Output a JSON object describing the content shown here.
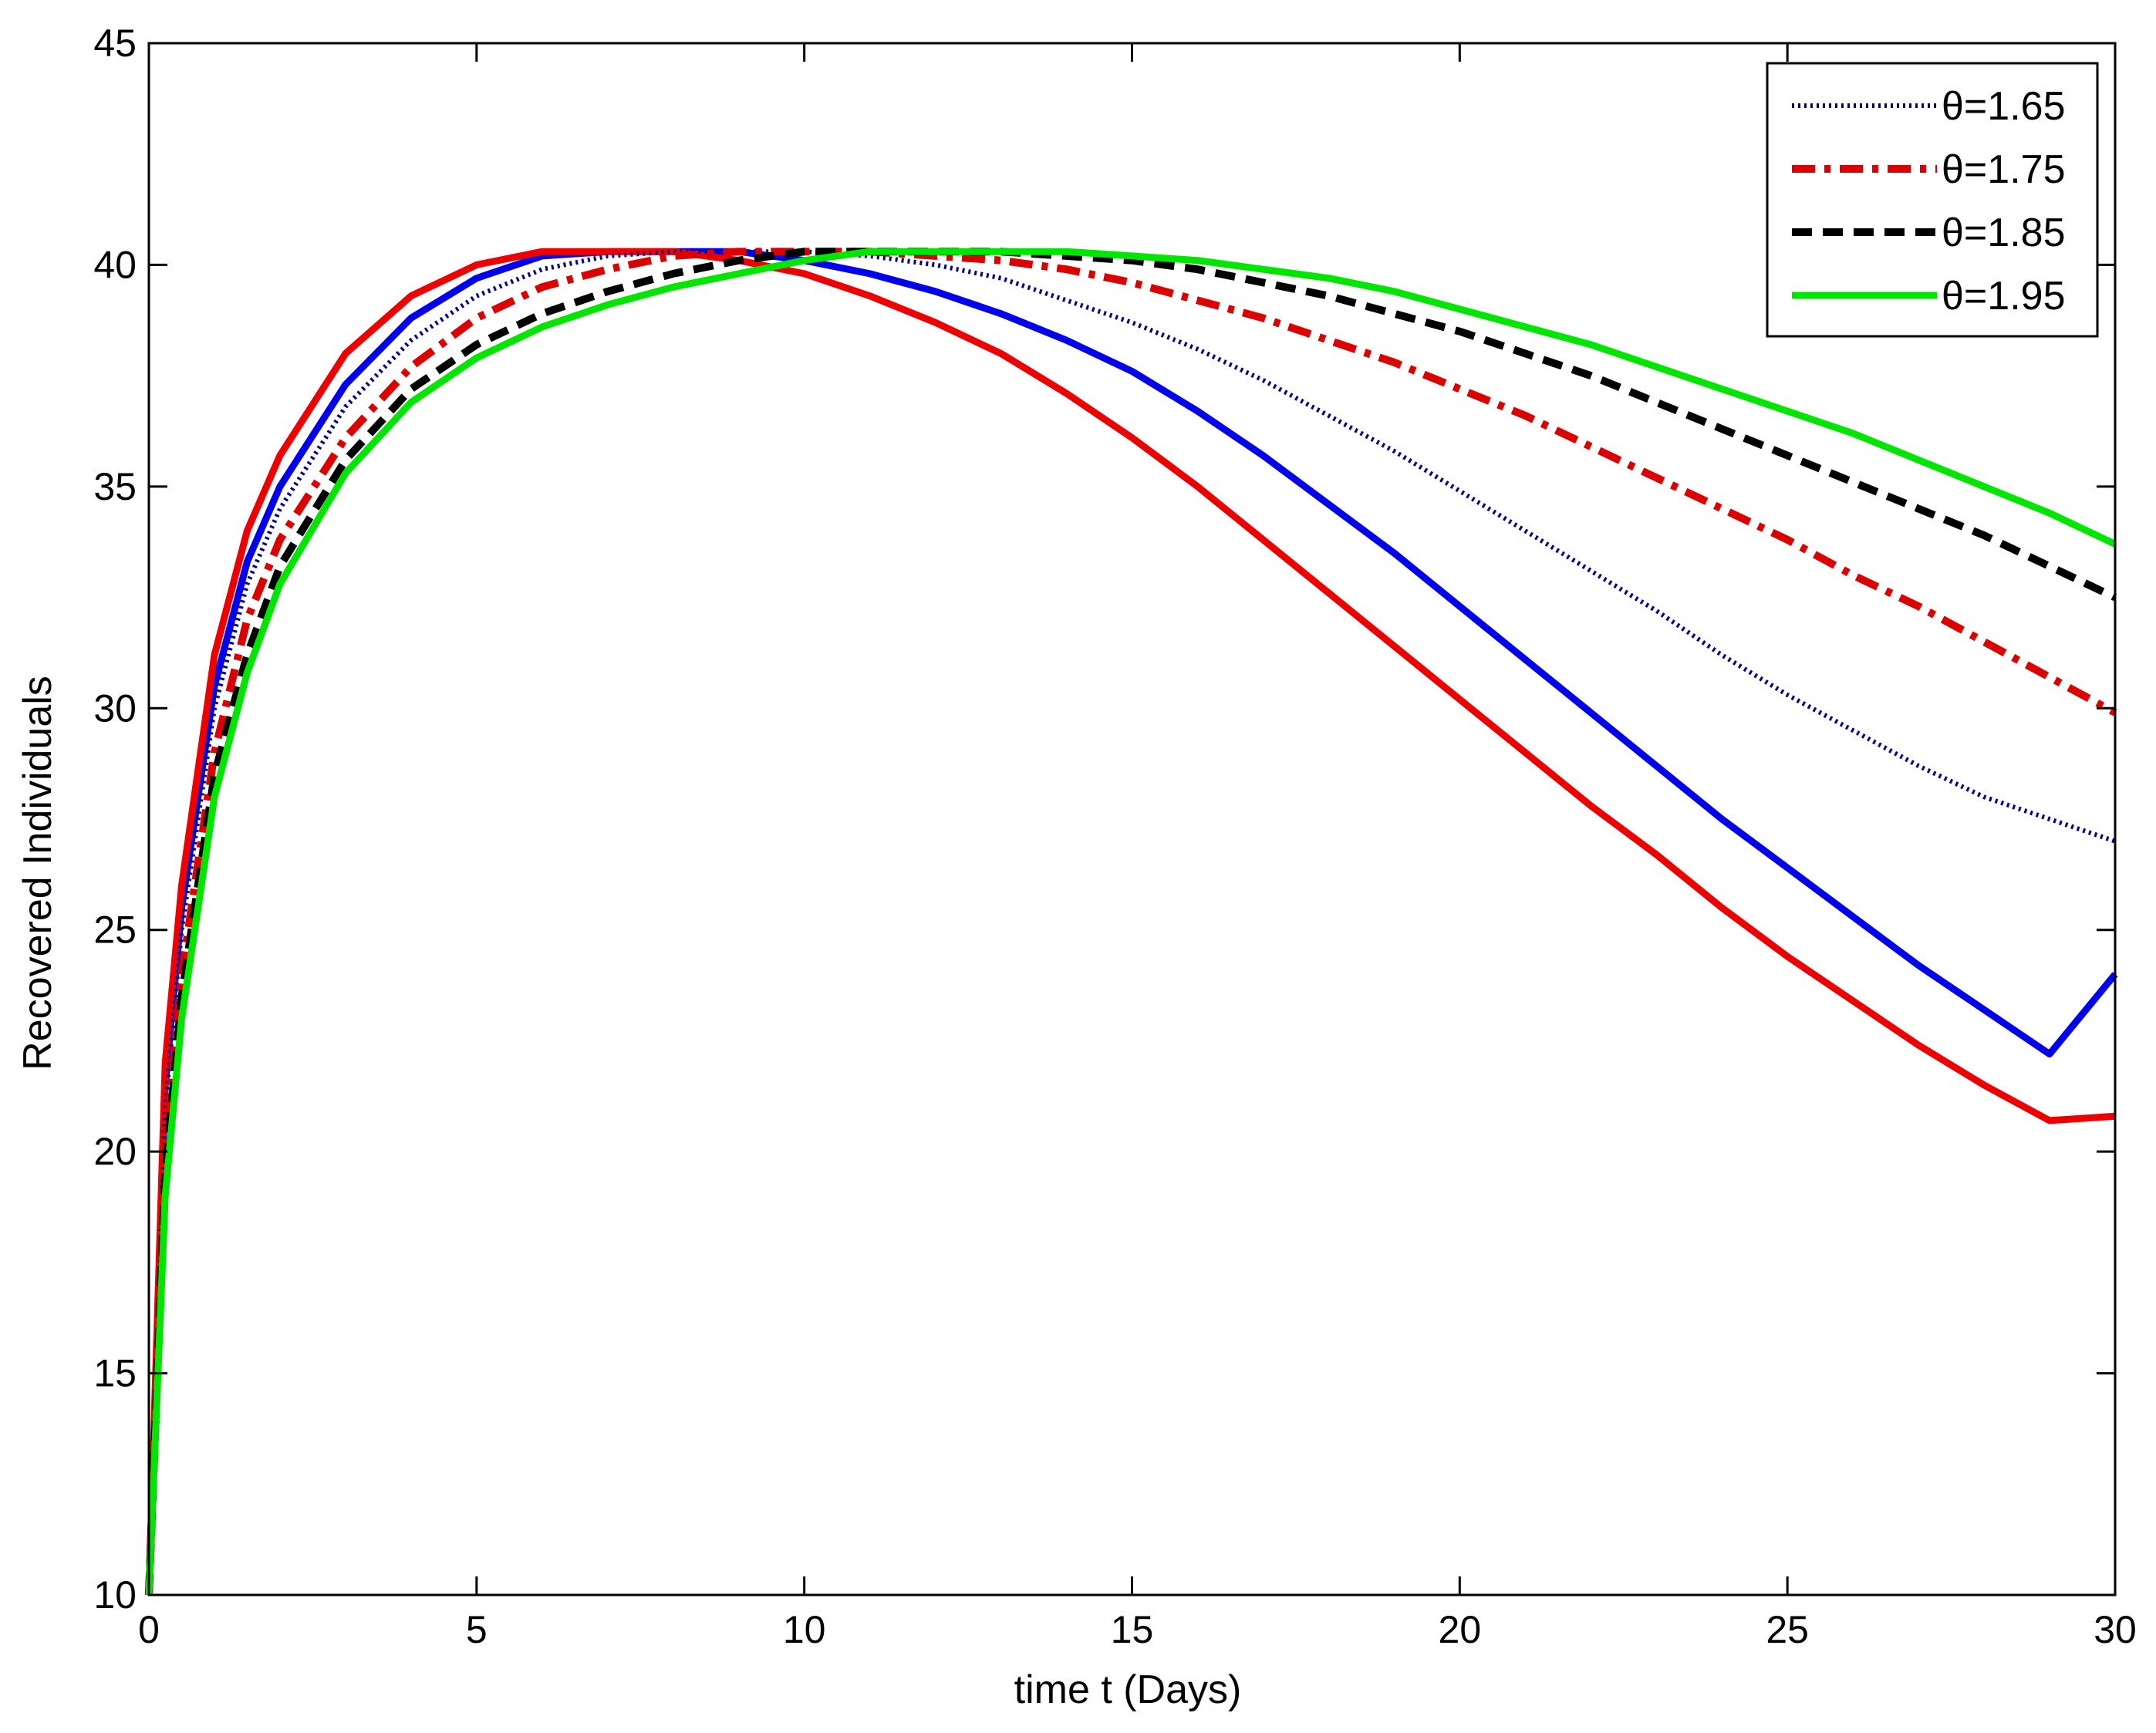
{
  "chart_data": {
    "type": "line",
    "title": "",
    "xlabel": "time t (Days)",
    "ylabel": "Recovered Individuals",
    "xlim": [
      0,
      30
    ],
    "ylim": [
      10,
      45
    ],
    "xticks": [
      "0",
      "5",
      "10",
      "15",
      "20",
      "25",
      "30"
    ],
    "yticks": [
      "10",
      "15",
      "20",
      "25",
      "30",
      "35",
      "40",
      "45"
    ],
    "xtick_values": [
      0,
      5,
      10,
      15,
      20,
      25,
      30
    ],
    "ytick_values": [
      10,
      15,
      20,
      25,
      30,
      35,
      40,
      45
    ],
    "grid": false,
    "legend_position": "top-right",
    "x": [
      0,
      0.25,
      0.5,
      1,
      1.5,
      2,
      3,
      4,
      5,
      6,
      7,
      8,
      9,
      10,
      11,
      12,
      13,
      14,
      15,
      16,
      17,
      18,
      19,
      20,
      21,
      22,
      23,
      24,
      25,
      26,
      27,
      28,
      29,
      30
    ],
    "series": [
      {
        "name": "θ=1.65",
        "in_legend": true,
        "color": "#00008b",
        "style": "dotted",
        "values": [
          10,
          21.0,
          25.0,
          30.0,
          32.8,
          34.5,
          36.8,
          38.3,
          39.3,
          39.9,
          40.2,
          40.3,
          40.3,
          40.3,
          40.2,
          40.0,
          39.7,
          39.2,
          38.7,
          38.1,
          37.4,
          36.6,
          35.8,
          34.9,
          34.0,
          33.1,
          32.2,
          31.2,
          30.3,
          29.5,
          28.7,
          28.0,
          27.5,
          27.0
        ]
      },
      {
        "name": "θ=1.75",
        "in_legend": true,
        "color": "#dd0000",
        "style": "dashdot",
        "values": [
          10,
          20.0,
          24.0,
          29.0,
          32.0,
          33.8,
          36.1,
          37.7,
          38.8,
          39.5,
          39.9,
          40.2,
          40.3,
          40.3,
          40.3,
          40.2,
          40.1,
          39.9,
          39.6,
          39.2,
          38.8,
          38.3,
          37.8,
          37.2,
          36.6,
          35.9,
          35.2,
          34.5,
          33.8,
          33.0,
          32.3,
          31.5,
          30.7,
          29.9
        ]
      },
      {
        "name": "θ=1.85",
        "in_legend": true,
        "color": "#000000",
        "style": "dashed",
        "values": [
          10,
          19.5,
          23.5,
          28.5,
          31.2,
          33.2,
          35.6,
          37.2,
          38.2,
          38.9,
          39.4,
          39.8,
          40.1,
          40.3,
          40.3,
          40.3,
          40.3,
          40.2,
          40.1,
          39.9,
          39.6,
          39.3,
          38.9,
          38.5,
          38.0,
          37.5,
          36.9,
          36.3,
          35.7,
          35.1,
          34.5,
          33.9,
          33.2,
          32.5
        ]
      },
      {
        "name": "θ=1.95",
        "in_legend": true,
        "color": "#00e600",
        "style": "solid",
        "values": [
          10,
          19.0,
          23.0,
          28.0,
          30.8,
          32.8,
          35.3,
          36.9,
          37.9,
          38.6,
          39.1,
          39.5,
          39.8,
          40.1,
          40.3,
          40.3,
          40.3,
          40.3,
          40.2,
          40.1,
          39.9,
          39.7,
          39.4,
          39.0,
          38.6,
          38.2,
          37.7,
          37.2,
          36.7,
          36.2,
          35.6,
          35.0,
          34.4,
          33.7
        ]
      },
      {
        "name": "Blue solid curve",
        "in_legend": false,
        "color": "#0000ee",
        "style": "solid",
        "values": [
          10,
          21.5,
          25.5,
          30.5,
          33.3,
          35.0,
          37.3,
          38.8,
          39.7,
          40.2,
          40.3,
          40.3,
          40.3,
          40.1,
          39.8,
          39.4,
          38.9,
          38.3,
          37.6,
          36.7,
          35.7,
          34.6,
          33.5,
          32.3,
          31.1,
          29.9,
          28.7,
          27.5,
          26.4,
          25.3,
          24.2,
          23.2,
          22.2,
          24.0
        ]
      },
      {
        "name": "Red solid curve",
        "in_legend": false,
        "color": "#ee0000",
        "style": "solid",
        "values": [
          10,
          22.0,
          26.0,
          31.2,
          34.0,
          35.7,
          38.0,
          39.3,
          40.0,
          40.3,
          40.3,
          40.3,
          40.1,
          39.8,
          39.3,
          38.7,
          38.0,
          37.1,
          36.1,
          35.0,
          33.8,
          32.6,
          31.4,
          30.2,
          29.0,
          27.8,
          26.7,
          25.5,
          24.4,
          23.4,
          22.4,
          21.5,
          20.7,
          20.8
        ]
      }
    ]
  }
}
